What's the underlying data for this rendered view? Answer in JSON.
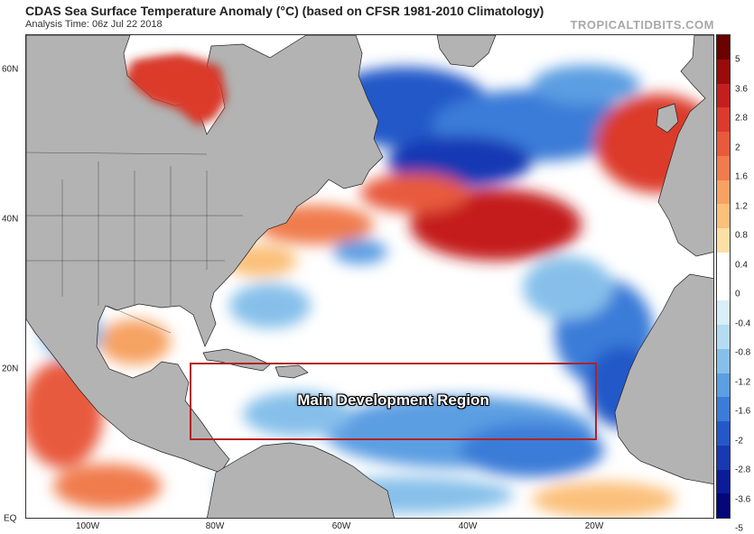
{
  "header": {
    "title": "CDAS Sea Surface Temperature Anomaly (°C) (based on CFSR 1981-2010 Climatology)",
    "analysis_time": "Analysis Time: 06z Jul 22 2018",
    "brand": "TROPICALTIDBITS.COM"
  },
  "map": {
    "annotation": "Main Development Region",
    "lat_labels": [
      {
        "text": "60N"
      },
      {
        "text": "40N"
      },
      {
        "text": "20N"
      },
      {
        "text": "EQ"
      }
    ],
    "lon_labels": [
      {
        "text": "100W"
      },
      {
        "text": "80W"
      },
      {
        "text": "60W"
      },
      {
        "text": "40W"
      },
      {
        "text": "20W"
      }
    ],
    "colors": {
      "land": "#b3b3b3",
      "ocean_neutral": "#ffffff",
      "box": "#b22222"
    }
  },
  "colorbar": {
    "unit": "°C",
    "ticks": [
      "5",
      "3.6",
      "2.8",
      "2",
      "1.6",
      "1.2",
      "0.8",
      "0.4",
      "0",
      "-0.4",
      "-0.8",
      "-1.2",
      "-1.6",
      "-2",
      "-2.8",
      "-3.6",
      "-5"
    ],
    "colors": [
      "#6a0000",
      "#9a0b0b",
      "#c41e1e",
      "#dc3a2c",
      "#e85a3c",
      "#f07c4e",
      "#f6a262",
      "#fbc07a",
      "#fde0a6",
      "#ffffff",
      "#ffffff",
      "#d8eef8",
      "#b4dcf2",
      "#86c0ea",
      "#5c9ee2",
      "#3a7cd8",
      "#2458c8",
      "#1838b4",
      "#0c1c98",
      "#04067a"
    ]
  }
}
